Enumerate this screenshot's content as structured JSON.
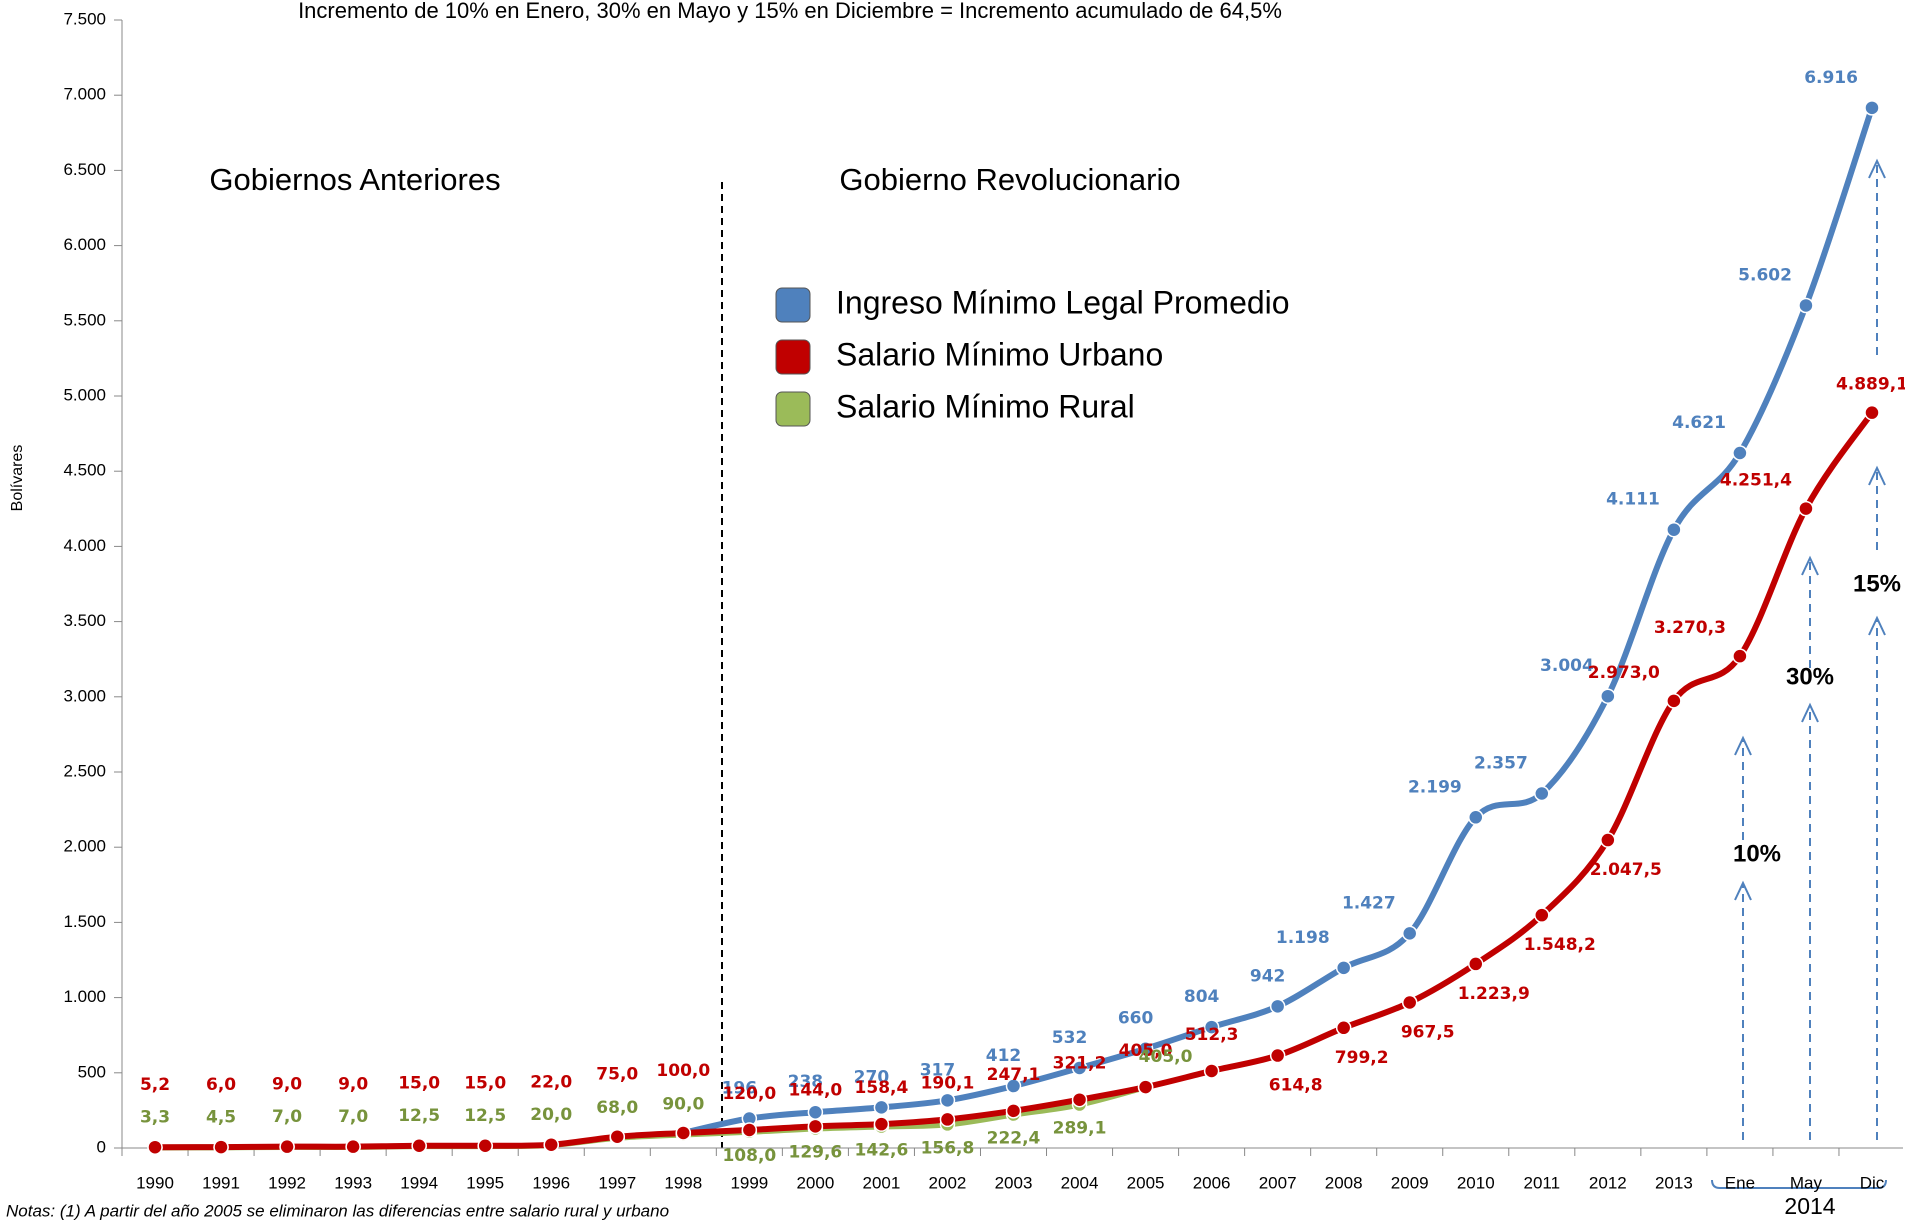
{
  "chart_data": {
    "type": "line",
    "title": "Incremento de 10% en Enero, 30% en Mayo y 15% en Diciembre = Incremento acumulado de 64,5%",
    "y_label": "Bolívares",
    "annotations": [
      "Gobiernos Anteriores",
      "Gobierno Revolucionario",
      "10%",
      "30%",
      "15%"
    ],
    "note": "Notas: (1) A partir del año 2005 se eliminaron las diferencias entre salario rural y urbano",
    "category_group": "2014",
    "categories": [
      "1990",
      "1991",
      "1992",
      "1993",
      "1994",
      "1995",
      "1996",
      "1997",
      "1998",
      "1999",
      "2000",
      "2001",
      "2002",
      "2003",
      "2004",
      "2005",
      "2006",
      "2007",
      "2008",
      "2009",
      "2010",
      "2011",
      "2012",
      "2013",
      "Ene",
      "May",
      "Dic"
    ],
    "ylim": [
      0,
      7500
    ],
    "yticks": [
      0,
      500,
      {
        "value": 1000,
        "label": "1.000"
      },
      {
        "value": 1500,
        "label": "1.500"
      },
      {
        "value": 2000,
        "label": "2.000"
      },
      {
        "value": 2500,
        "label": "2.500"
      },
      {
        "value": 3000,
        "label": "3.000"
      },
      {
        "value": 3500,
        "label": "3.500"
      },
      {
        "value": 4000,
        "label": "4.000"
      },
      {
        "value": 4500,
        "label": "4.500"
      },
      {
        "value": 5000,
        "label": "5.000"
      },
      {
        "value": 5500,
        "label": "5.500"
      },
      {
        "value": 6000,
        "label": "6.000"
      },
      {
        "value": 6500,
        "label": "6.500"
      },
      {
        "value": 7000,
        "label": "7.000"
      },
      {
        "value": 7500,
        "label": "7.500"
      }
    ],
    "series": [
      {
        "name": "Ingreso Mínimo Legal Promedio",
        "color": "#4f81bd",
        "label_color": "#4f81bd",
        "values": [
          null,
          null,
          null,
          null,
          null,
          null,
          null,
          null,
          100,
          196,
          238,
          270,
          317,
          412,
          532,
          660,
          804,
          942,
          1198,
          1427,
          2199,
          2357,
          3004,
          4111,
          4621,
          5602,
          6916
        ],
        "value_labels": [
          null,
          null,
          null,
          null,
          null,
          null,
          null,
          null,
          null,
          "196",
          "238",
          "270",
          "317",
          "412",
          "532",
          "660",
          "804",
          "942",
          "1.198",
          "1.427",
          "2.199",
          "2.357",
          "3.004",
          "4.111",
          "4.621",
          "5.602",
          "6.916"
        ]
      },
      {
        "name": "Salario Mínimo Urbano",
        "color": "#c00000",
        "label_color": "#c00000",
        "values": [
          5.2,
          6.0,
          9.0,
          9.0,
          15.0,
          15.0,
          22.0,
          75.0,
          100.0,
          120.0,
          144.0,
          158.4,
          190.1,
          247.1,
          321.2,
          405.0,
          512.3,
          614.8,
          799.2,
          967.5,
          1223.9,
          1548.2,
          2047.5,
          2973.0,
          3270.3,
          4251.4,
          4889.1
        ],
        "value_labels": [
          "5,2",
          "6,0",
          "9,0",
          "9,0",
          "15,0",
          "15,0",
          "22,0",
          "75,0",
          "100,0",
          "120,0",
          "144,0",
          "158,4",
          "190,1",
          "247,1",
          "321,2",
          "405,0",
          "512,3",
          "614,8",
          "799,2",
          "967,5",
          "1.223,9",
          "1.548,2",
          "2.047,5",
          "2.973,0",
          "3.270,3",
          "4.251,4",
          "4.889,1"
        ]
      },
      {
        "name": "Salario Mínimo Rural",
        "color": "#9bbb59",
        "label_color": "#77933c",
        "values": [
          3.3,
          4.5,
          7.0,
          7.0,
          12.5,
          12.5,
          20.0,
          68.0,
          90.0,
          108.0,
          129.6,
          142.6,
          156.8,
          222.4,
          289.1,
          405.0,
          null,
          null,
          null,
          null,
          null,
          null,
          null,
          null,
          null,
          null,
          null
        ],
        "value_labels": [
          "3,3",
          "4,5",
          "7,0",
          "7,0",
          "12,5",
          "12,5",
          "20,0",
          "68,0",
          "90,0",
          "108,0",
          "129,6",
          "142,6",
          "156,8",
          "222,4",
          "289,1",
          "405,0",
          null,
          null,
          null,
          null,
          null,
          null,
          null,
          null,
          null,
          null,
          null
        ]
      }
    ]
  }
}
